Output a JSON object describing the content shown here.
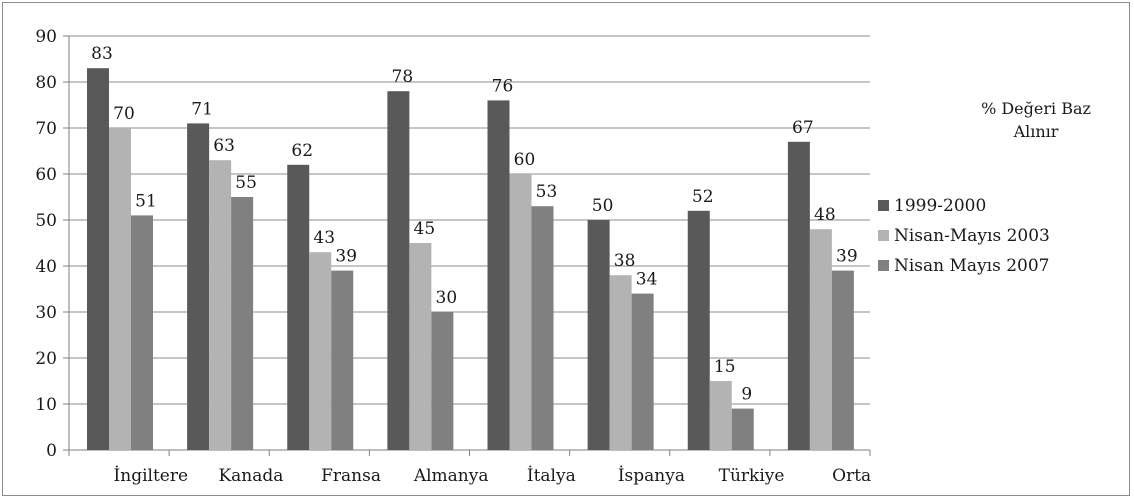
{
  "chart_data": {
    "type": "bar",
    "categories": [
      "İngiltere",
      "Kanada",
      "Fransa",
      "Almanya",
      "İtalya",
      "İspanya",
      "Türkiye",
      "Orta"
    ],
    "series": [
      {
        "name": "1999-2000",
        "values": [
          83,
          71,
          62,
          78,
          76,
          50,
          52,
          67
        ],
        "color": "#595959"
      },
      {
        "name": "Nisan-Mayıs 2003",
        "values": [
          70,
          63,
          43,
          45,
          60,
          38,
          15,
          48
        ],
        "color": "#b3b3b3"
      },
      {
        "name": "Nisan Mayıs 2007",
        "values": [
          51,
          55,
          39,
          30,
          53,
          34,
          9,
          39
        ],
        "color": "#808080"
      }
    ],
    "ylim": [
      0,
      90
    ],
    "yticks": [
      0,
      10,
      20,
      30,
      40,
      50,
      60,
      70,
      80,
      90
    ],
    "grid": true,
    "legend_position": "right",
    "legend_title": "% Değeri Baz Alınır"
  }
}
